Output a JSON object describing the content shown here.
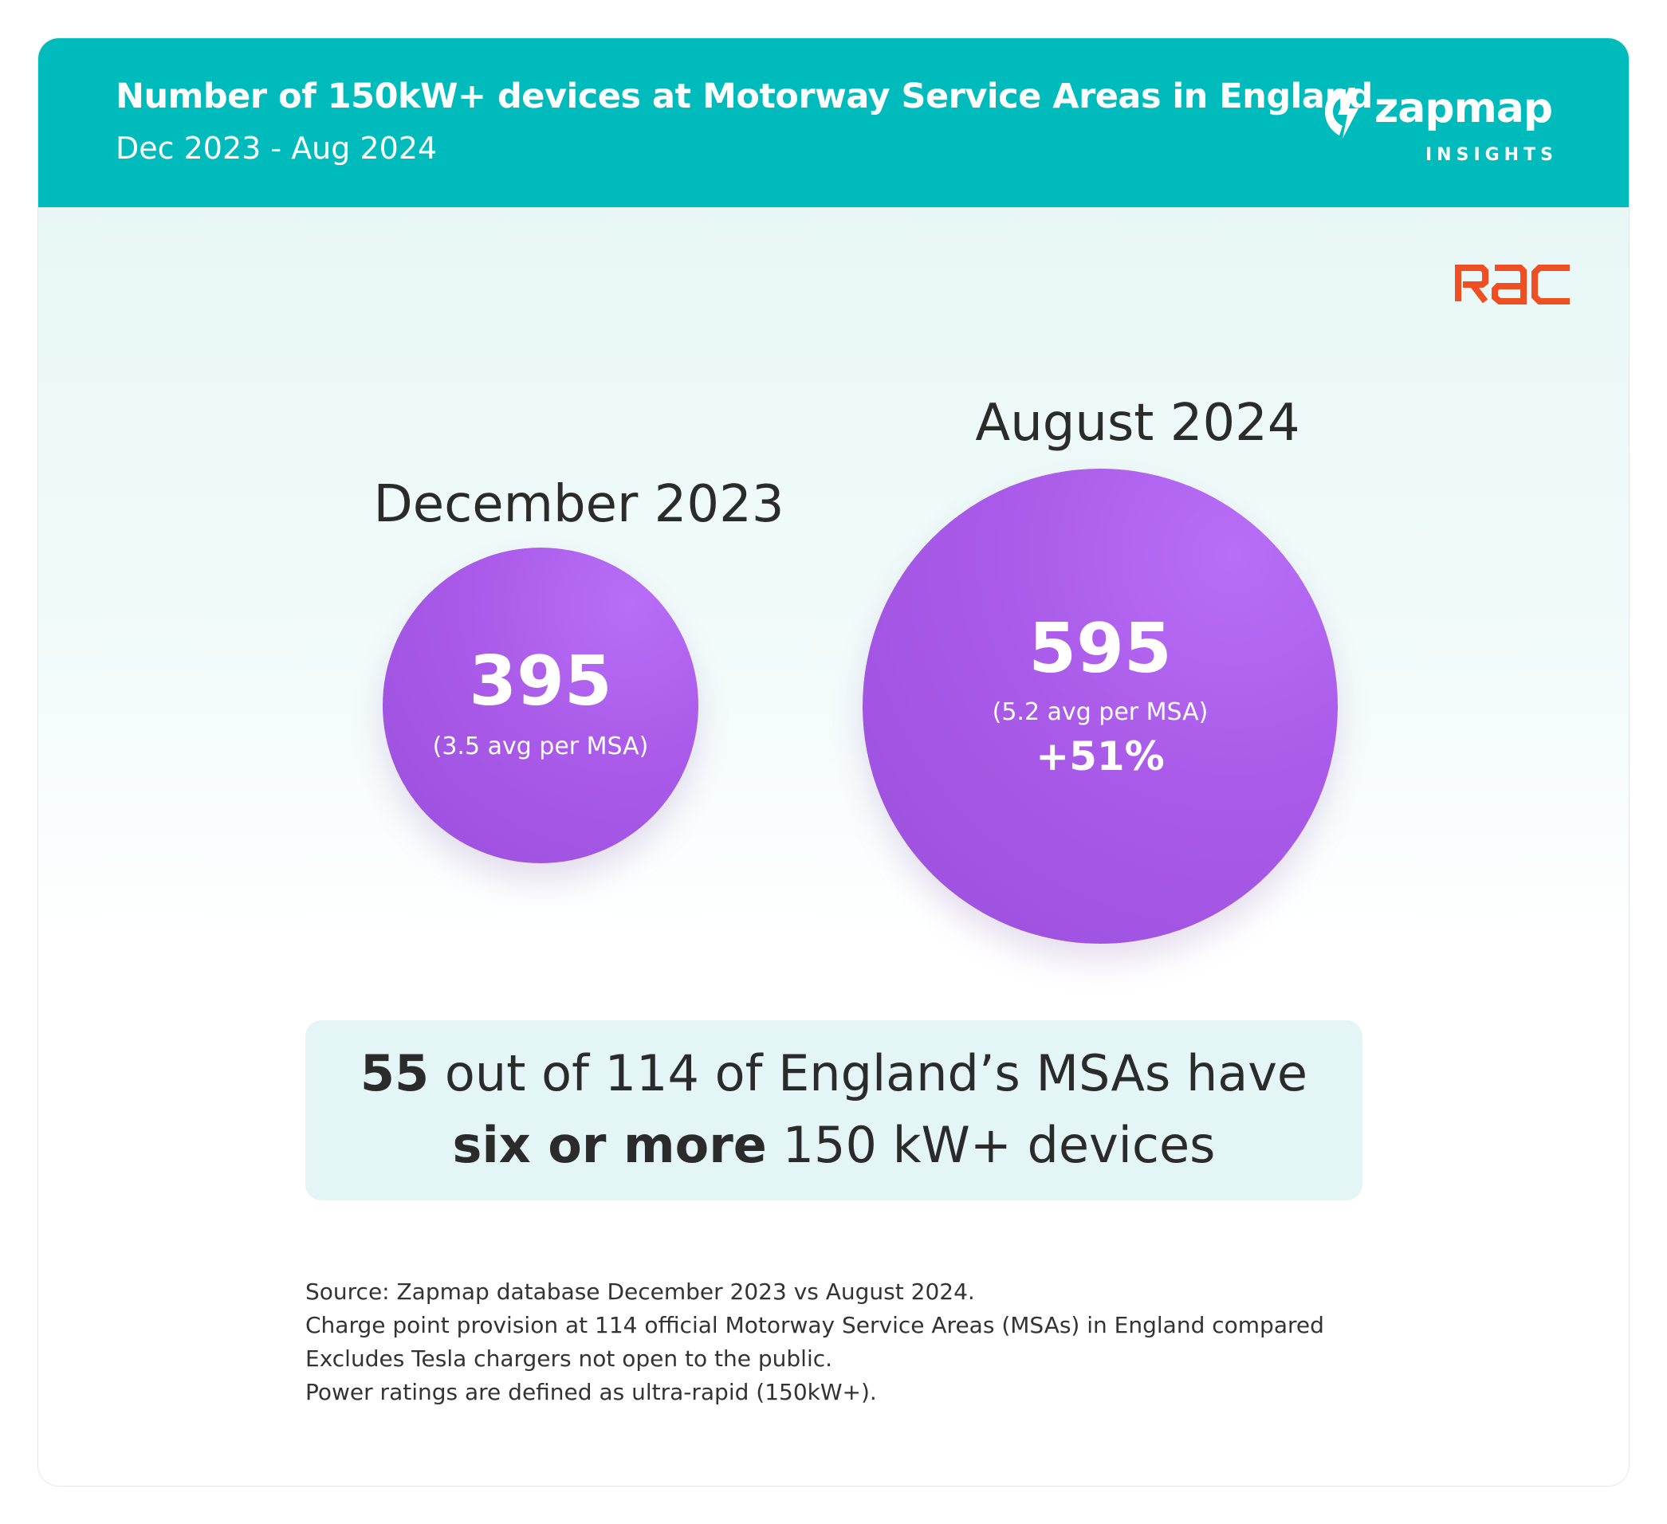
{
  "header": {
    "title": "Number of 150kW+ devices at Motorway Service Areas  in England",
    "subtitle": "Dec 2023 - Aug 2024"
  },
  "brand": {
    "logo_text": "zapmap",
    "logo_subtext": "INSIGHTS",
    "partner_logo": "RAC",
    "colors": {
      "header": "#00bbbb",
      "bubble": "#a95ae8",
      "rac": "#f04e23"
    }
  },
  "periods": [
    {
      "label": "December 2023",
      "count": "395",
      "avg": "(3.5 avg per MSA)",
      "change": ""
    },
    {
      "label": "August 2024",
      "count": "595",
      "avg": "(5.2 avg per MSA)",
      "change": "+51%"
    }
  ],
  "highlight": {
    "line1_bold": "55",
    "line1_rest": " out of 114 of England’s MSAs have",
    "line2_bold": "six or more",
    "line2_rest": " 150 kW+ devices"
  },
  "source_notes": [
    "Source: Zapmap database December 2023 vs August 2024.",
    "Charge point provision at 114 official Motorway Service Areas (MSAs) in England compared",
    "Excludes Tesla chargers not open to the public.",
    "Power ratings are defined as ultra-rapid (150kW+)."
  ]
}
